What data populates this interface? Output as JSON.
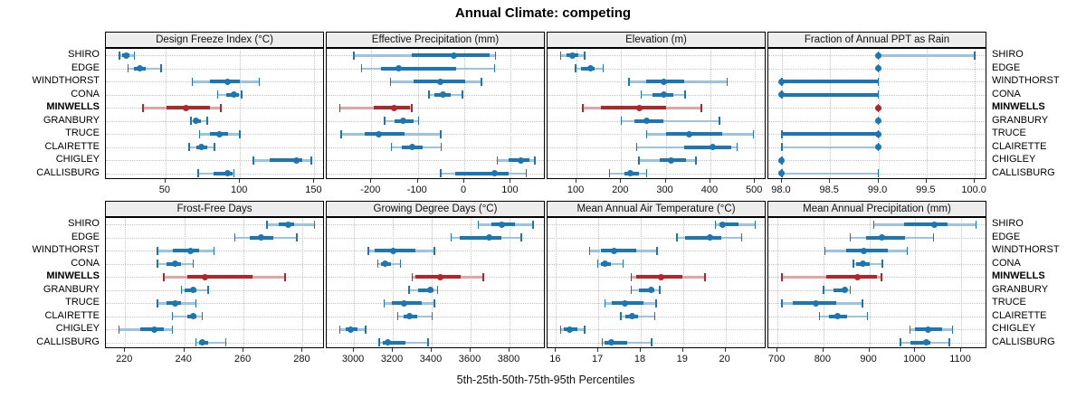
{
  "title": "Annual Climate: competing",
  "caption": "5th-25th-50th-75th-95th Percentiles",
  "colors": {
    "series_blue": "#1d76b4",
    "series_blue_light": "#9cc3e0",
    "highlight_red": "#b2252a",
    "highlight_red_light": "#dfa6a6",
    "strip_background": "#ededed",
    "grid_line": "#c3c3c3",
    "panel_border": "#000000"
  },
  "chart_data": {
    "type": "dotplot",
    "title": "Annual Climate: competing",
    "xlabel": "5th-25th-50th-75th-95th Percentiles",
    "percentile_labels": [
      "5th",
      "25th",
      "50th",
      "75th",
      "95th"
    ],
    "legend_position": "none",
    "grid": "dotted",
    "sites": [
      "SHIRO",
      "EDGE",
      "WINDTHORST",
      "CONA",
      "MINWELLS",
      "GRANBURY",
      "TRUCE",
      "CLAIRETTE",
      "CHIGLEY",
      "CALLISBURG"
    ],
    "highlight": "MINWELLS",
    "panels": [
      {
        "title": "Design Freeze Index (°C)",
        "row": 0,
        "col": 0,
        "xlim": [
          10,
          157
        ],
        "ticks": [
          50,
          100,
          150
        ],
        "tick_labels": [
          "50",
          "100",
          "150"
        ],
        "values": [
          [
            19,
            21,
            23.5,
            26,
            29
          ],
          [
            25,
            29,
            33,
            37,
            47
          ],
          [
            68,
            80,
            92,
            100,
            113
          ],
          [
            85,
            91,
            96,
            99,
            101
          ],
          [
            35,
            51,
            64,
            80,
            87
          ],
          [
            67,
            69,
            70.5,
            74,
            78
          ],
          [
            73,
            80,
            86,
            92,
            100
          ],
          [
            66,
            71,
            74,
            78,
            83
          ],
          [
            109,
            120,
            138,
            142,
            148
          ],
          [
            72,
            82,
            92,
            95,
            96
          ]
        ]
      },
      {
        "title": "Effective Precipitation (mm)",
        "row": 0,
        "col": 1,
        "xlim": [
          -296,
          175
        ],
        "ticks": [
          -200,
          -100,
          0,
          100
        ],
        "tick_labels": [
          "-200",
          "-100",
          "0",
          "100"
        ],
        "values": [
          [
            -238,
            -113,
            -22,
            54,
            67
          ],
          [
            -221,
            -180,
            -141,
            -18,
            65
          ],
          [
            -159,
            -110,
            -51,
            1,
            37
          ],
          [
            -76,
            -65,
            -46,
            -30,
            -4
          ],
          [
            -268,
            -195,
            -151,
            -116,
            -113
          ],
          [
            -171,
            -150,
            -131,
            -110,
            -98
          ],
          [
            -265,
            -214,
            -185,
            -129,
            -51
          ],
          [
            -157,
            -135,
            -113,
            -90,
            -50
          ],
          [
            71,
            95,
            122,
            140,
            152
          ],
          [
            -51,
            -20,
            65,
            95,
            133
          ]
        ]
      },
      {
        "title": "Elevation (m)",
        "row": 0,
        "col": 2,
        "xlim": [
          35,
          526
        ],
        "ticks": [
          100,
          200,
          300,
          400,
          500
        ],
        "tick_labels": [
          "100",
          "200",
          "300",
          "400",
          "500"
        ],
        "values": [
          [
            64,
            78,
            90,
            103,
            118
          ],
          [
            98,
            111,
            132,
            141,
            160
          ],
          [
            218,
            257,
            296,
            342,
            438
          ],
          [
            245,
            270,
            296,
            318,
            343
          ],
          [
            114,
            155,
            240,
            300,
            380
          ],
          [
            200,
            230,
            257,
            295,
            420
          ],
          [
            257,
            301,
            353,
            426,
            497
          ],
          [
            235,
            341,
            406,
            446,
            460
          ],
          [
            240,
            286,
            311,
            346,
            368
          ],
          [
            174,
            208,
            220,
            239,
            257
          ]
        ]
      },
      {
        "title": "Fraction of Annual PPT as Rain",
        "row": 0,
        "col": 3,
        "xlim": [
          97.86,
          100.13
        ],
        "ticks": [
          98.0,
          98.5,
          99.0,
          99.5,
          100.0
        ],
        "tick_labels": [
          "98.0",
          "98.5",
          "99.0",
          "99.5",
          "100.0"
        ],
        "values": [
          [
            99,
            99,
            99,
            99,
            100
          ],
          [
            99,
            99,
            99,
            99,
            99
          ],
          [
            98,
            98,
            98,
            99,
            99
          ],
          [
            98,
            98,
            98,
            99,
            99
          ],
          [
            99,
            99,
            99,
            99,
            99
          ],
          [
            99,
            99,
            99,
            99,
            99
          ],
          [
            98,
            98,
            99,
            99,
            99
          ],
          [
            98,
            99,
            99,
            99,
            99
          ],
          [
            98,
            98,
            98,
            98,
            98
          ],
          [
            98,
            98,
            98,
            98,
            99
          ]
        ]
      },
      {
        "title": "Frost-Free Days",
        "row": 1,
        "col": 0,
        "xlim": [
          213.5,
          287.5
        ],
        "ticks": [
          220,
          240,
          260,
          280
        ],
        "tick_labels": [
          "220",
          "240",
          "260",
          "280"
        ],
        "values": [
          [
            268,
            272,
            275,
            277,
            284
          ],
          [
            257,
            262,
            266,
            270,
            278
          ],
          [
            231,
            236,
            242,
            245,
            250
          ],
          [
            231,
            234,
            237,
            239,
            243
          ],
          [
            233,
            241,
            247,
            263,
            274
          ],
          [
            239,
            240,
            243,
            244,
            248
          ],
          [
            231,
            234,
            237,
            239,
            244
          ],
          [
            236,
            241,
            243,
            244,
            246
          ],
          [
            218,
            225,
            230,
            233,
            236
          ],
          [
            244,
            245,
            246,
            248,
            254
          ]
        ]
      },
      {
        "title": "Growing Degree Days (°C)",
        "row": 1,
        "col": 1,
        "xlim": [
          2860,
          3986
        ],
        "ticks": [
          3000,
          3200,
          3400,
          3600,
          3800
        ],
        "tick_labels": [
          "3000",
          "3200",
          "3400",
          "3600",
          "3800"
        ],
        "values": [
          [
            3640,
            3705,
            3762,
            3830,
            3920
          ],
          [
            3500,
            3545,
            3693,
            3760,
            3860
          ],
          [
            3073,
            3108,
            3200,
            3318,
            3414
          ],
          [
            3124,
            3140,
            3160,
            3190,
            3240
          ],
          [
            3299,
            3318,
            3442,
            3550,
            3664
          ],
          [
            3284,
            3330,
            3392,
            3410,
            3431
          ],
          [
            3155,
            3194,
            3256,
            3349,
            3414
          ],
          [
            3225,
            3256,
            3284,
            3325,
            3403
          ],
          [
            2927,
            2960,
            2981,
            3020,
            3059
          ],
          [
            3129,
            3147,
            3174,
            3264,
            3380
          ]
        ]
      },
      {
        "title": "Mean Annual Air Temperature (°C)",
        "row": 1,
        "col": 2,
        "xlim": [
          15.8,
          20.97
        ],
        "ticks": [
          16,
          17,
          18,
          19,
          20
        ],
        "tick_labels": [
          "16",
          "17",
          "18",
          "19",
          "20"
        ],
        "values": [
          [
            19.76,
            19.85,
            19.93,
            20.3,
            20.7
          ],
          [
            18.85,
            19.05,
            19.63,
            19.9,
            20.38
          ],
          [
            16.79,
            17.05,
            17.36,
            17.9,
            18.38
          ],
          [
            16.99,
            17.06,
            17.16,
            17.3,
            17.58
          ],
          [
            17.78,
            17.9,
            18.48,
            18.98,
            19.52
          ],
          [
            17.78,
            17.96,
            18.24,
            18.32,
            18.45
          ],
          [
            17.16,
            17.32,
            17.63,
            18.06,
            18.36
          ],
          [
            17.53,
            17.64,
            17.79,
            17.94,
            18.33
          ],
          [
            16.11,
            16.18,
            16.32,
            16.5,
            16.68
          ],
          [
            17.09,
            17.15,
            17.3,
            17.68,
            18.26
          ]
        ]
      },
      {
        "title": "Mean Annual Precipitation (mm)",
        "row": 1,
        "col": 3,
        "xlim": [
          680,
          1157
        ],
        "ticks": [
          700,
          800,
          900,
          1000,
          1100
        ],
        "tick_labels": [
          "700",
          "800",
          "900",
          "1000",
          "1100"
        ],
        "values": [
          [
            910,
            975,
            1041,
            1071,
            1132
          ],
          [
            858,
            893,
            928,
            978,
            1040
          ],
          [
            803,
            849,
            888,
            941,
            983
          ],
          [
            865,
            872,
            885,
            901,
            928
          ],
          [
            710,
            806,
            875,
            917,
            926
          ],
          [
            800,
            822,
            846,
            850,
            858
          ],
          [
            710,
            733,
            784,
            828,
            885
          ],
          [
            791,
            813,
            830,
            852,
            896
          ],
          [
            988,
            999,
            1027,
            1058,
            1081
          ],
          [
            968,
            990,
            1024,
            1033,
            1074
          ]
        ]
      }
    ]
  }
}
